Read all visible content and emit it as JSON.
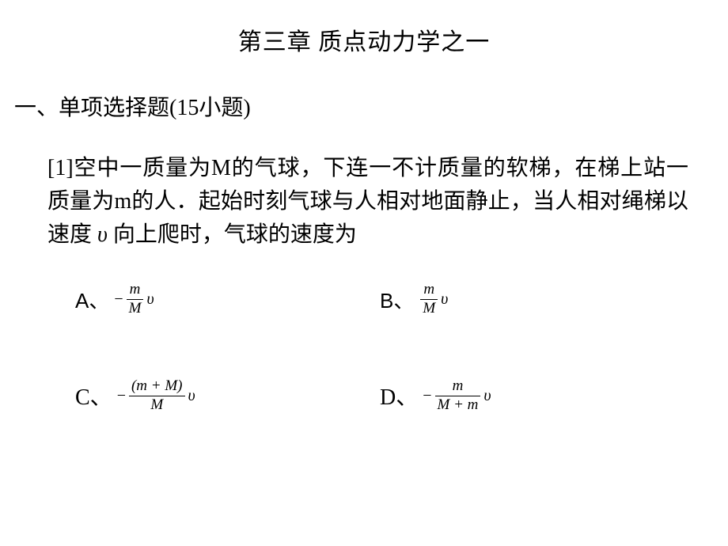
{
  "title": "第三章  质点动力学之一",
  "section_heading": "一、单项选择题(15小题)",
  "question": {
    "prefix": "[1]空中一质量为M的气球，下连一不计质量的软梯，在梯上站一质量为m的人．起始时刻气球与人相对地面静止，当人相对绳梯以速度",
    "var": "υ",
    "suffix": "向上爬时，气球的速度为"
  },
  "options": {
    "A": {
      "label": "A、",
      "sign": "−",
      "num": "m",
      "den": "M",
      "v": "υ"
    },
    "B": {
      "label": "B、",
      "sign": "",
      "num": "m",
      "den": "M",
      "v": "υ"
    },
    "C": {
      "label": "C、",
      "sign": "−",
      "num": "(m + M)",
      "den": "M",
      "v": "υ"
    },
    "D": {
      "label": "D、",
      "sign": "−",
      "num": "m",
      "den": "M + m",
      "v": "υ"
    }
  },
  "colors": {
    "text": "#000000",
    "bg": "#ffffff"
  }
}
